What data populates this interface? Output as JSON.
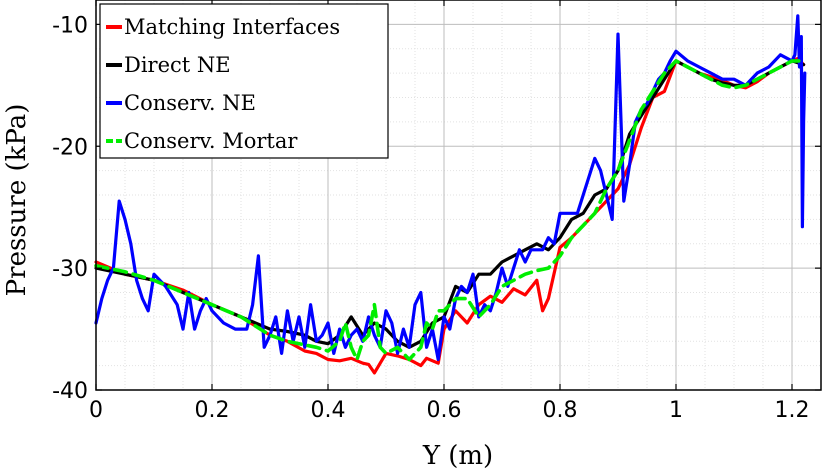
{
  "chart_data": {
    "type": "line",
    "xlabel": "Y (m)",
    "ylabel": "Pressure (kPa)",
    "xlim": [
      0,
      1.25
    ],
    "ylim": [
      -40,
      -8
    ],
    "xticks": [
      0,
      0.2,
      0.4,
      0.6,
      0.8,
      1,
      1.2
    ],
    "xtick_labels": [
      "0",
      "0.2",
      "0.4",
      "0.6",
      "0.8",
      "1",
      "1.2"
    ],
    "yticks": [
      -40,
      -30,
      -20,
      -10
    ],
    "ytick_labels": [
      "-40",
      "-30",
      "-20",
      "-10"
    ],
    "grid": "on",
    "minor_grid": "on",
    "legend_position": "top-left",
    "series": [
      {
        "name": "Matching Interfaces",
        "color": "#ff0000",
        "style": "solid",
        "x": [
          0,
          0.05,
          0.1,
          0.15,
          0.2,
          0.25,
          0.3,
          0.33,
          0.36,
          0.38,
          0.4,
          0.42,
          0.44,
          0.46,
          0.47,
          0.48,
          0.5,
          0.52,
          0.54,
          0.56,
          0.57,
          0.59,
          0.6,
          0.62,
          0.64,
          0.66,
          0.68,
          0.7,
          0.72,
          0.74,
          0.76,
          0.77,
          0.78,
          0.8,
          0.82,
          0.84,
          0.86,
          0.88,
          0.9,
          0.92,
          0.94,
          0.96,
          0.98,
          1,
          1.02,
          1.04,
          1.06,
          1.08,
          1.1,
          1.12,
          1.14,
          1.16,
          1.18,
          1.2,
          1.21,
          1.22
        ],
        "y": [
          -29.5,
          -30.5,
          -31,
          -31.8,
          -33,
          -34,
          -35.5,
          -36,
          -36.8,
          -37,
          -37.5,
          -37.6,
          -37.4,
          -37.8,
          -37.9,
          -38.6,
          -37,
          -37.2,
          -37.5,
          -38,
          -37.4,
          -37.8,
          -35,
          -33.5,
          -34.5,
          -33,
          -32.3,
          -32.8,
          -31.7,
          -32.2,
          -31,
          -33.5,
          -32.5,
          -28.3,
          -27.5,
          -26.5,
          -25.5,
          -24.5,
          -23.5,
          -21.5,
          -18.5,
          -16,
          -15.5,
          -13,
          -13.5,
          -14,
          -14.3,
          -14.6,
          -15,
          -15.2,
          -14.7,
          -14,
          -13.5,
          -13,
          -12.8,
          -13.3
        ]
      },
      {
        "name": "Direct NE",
        "color": "#000000",
        "style": "solid",
        "x": [
          0,
          0.05,
          0.1,
          0.15,
          0.2,
          0.25,
          0.3,
          0.33,
          0.36,
          0.38,
          0.4,
          0.42,
          0.44,
          0.46,
          0.48,
          0.5,
          0.52,
          0.54,
          0.56,
          0.58,
          0.6,
          0.62,
          0.64,
          0.66,
          0.68,
          0.7,
          0.72,
          0.74,
          0.76,
          0.78,
          0.8,
          0.82,
          0.84,
          0.86,
          0.88,
          0.9,
          0.92,
          0.94,
          0.96,
          0.98,
          1,
          1.02,
          1.04,
          1.06,
          1.08,
          1.1,
          1.12,
          1.14,
          1.16,
          1.18,
          1.2,
          1.22
        ],
        "y": [
          -30,
          -30.5,
          -31,
          -32,
          -33,
          -34,
          -35,
          -35.2,
          -35.5,
          -36,
          -36.2,
          -35.5,
          -34,
          -35.5,
          -34.5,
          -35,
          -36,
          -36.5,
          -36,
          -34.5,
          -34,
          -31.5,
          -32,
          -30.5,
          -30.5,
          -29.5,
          -29,
          -28.5,
          -28,
          -28.5,
          -27.5,
          -26,
          -25.5,
          -24,
          -23.5,
          -22,
          -19,
          -17.5,
          -16,
          -14.5,
          -13,
          -13.5,
          -14,
          -14.5,
          -14.8,
          -15,
          -15,
          -14.5,
          -14,
          -13.5,
          -13,
          -13.3
        ]
      },
      {
        "name": "Conserv. NE",
        "color": "#0000ff",
        "style": "solid",
        "x": [
          0,
          0.01,
          0.02,
          0.03,
          0.04,
          0.05,
          0.06,
          0.07,
          0.08,
          0.09,
          0.1,
          0.12,
          0.14,
          0.15,
          0.16,
          0.17,
          0.18,
          0.19,
          0.2,
          0.22,
          0.24,
          0.26,
          0.27,
          0.28,
          0.29,
          0.3,
          0.31,
          0.32,
          0.33,
          0.34,
          0.35,
          0.36,
          0.37,
          0.38,
          0.39,
          0.4,
          0.41,
          0.42,
          0.43,
          0.44,
          0.45,
          0.46,
          0.47,
          0.48,
          0.49,
          0.5,
          0.51,
          0.52,
          0.53,
          0.54,
          0.55,
          0.56,
          0.57,
          0.58,
          0.59,
          0.6,
          0.61,
          0.62,
          0.63,
          0.64,
          0.65,
          0.66,
          0.67,
          0.68,
          0.69,
          0.7,
          0.71,
          0.72,
          0.73,
          0.74,
          0.75,
          0.76,
          0.77,
          0.78,
          0.79,
          0.8,
          0.81,
          0.82,
          0.83,
          0.84,
          0.85,
          0.86,
          0.87,
          0.88,
          0.89,
          0.9,
          0.91,
          0.92,
          0.93,
          0.94,
          0.95,
          0.96,
          0.97,
          0.98,
          0.99,
          1,
          1.02,
          1.04,
          1.06,
          1.08,
          1.1,
          1.12,
          1.14,
          1.16,
          1.18,
          1.2,
          1.205,
          1.21,
          1.213,
          1.216,
          1.218,
          1.22,
          1.222
        ],
        "y": [
          -34.5,
          -32.5,
          -31,
          -30,
          -24.5,
          -26,
          -28,
          -31,
          -32.5,
          -33.5,
          -30.5,
          -31.5,
          -33,
          -35,
          -32,
          -35,
          -33.5,
          -32.5,
          -33.5,
          -34.5,
          -35,
          -35,
          -33,
          -29,
          -36.5,
          -35.5,
          -34,
          -37,
          -33.5,
          -36,
          -34,
          -36.5,
          -33,
          -36,
          -35.5,
          -34.5,
          -37,
          -35,
          -36.5,
          -35.5,
          -35,
          -36,
          -34,
          -35.5,
          -36.5,
          -33.5,
          -34.5,
          -37,
          -35,
          -36.5,
          -33,
          -32,
          -36.5,
          -35,
          -37.5,
          -34,
          -35,
          -32.5,
          -31.5,
          -32,
          -30.5,
          -34,
          -33,
          -33.5,
          -32,
          -30,
          -31.5,
          -30,
          -28.5,
          -29.5,
          -28.5,
          -28.5,
          -28.5,
          -27.5,
          -28,
          -25.5,
          -25.5,
          -25.5,
          -25.5,
          -24,
          -22.5,
          -21,
          -22,
          -24,
          -26,
          -10.8,
          -24.5,
          -21.5,
          -18,
          -17,
          -16.5,
          -15.5,
          -14.5,
          -14,
          -13,
          -12.2,
          -13,
          -13.5,
          -14,
          -14.5,
          -14.5,
          -15,
          -14,
          -13.5,
          -12.5,
          -13,
          -12.5,
          -9.3,
          -13.5,
          -11,
          -26.6,
          -18,
          -14
        ]
      },
      {
        "name": "Conserv. Mortar",
        "color": "#00ee00",
        "style": "dashed",
        "x": [
          0,
          0.05,
          0.1,
          0.15,
          0.2,
          0.25,
          0.3,
          0.33,
          0.36,
          0.38,
          0.4,
          0.42,
          0.43,
          0.44,
          0.45,
          0.46,
          0.47,
          0.48,
          0.49,
          0.5,
          0.52,
          0.54,
          0.56,
          0.57,
          0.58,
          0.59,
          0.6,
          0.62,
          0.64,
          0.66,
          0.68,
          0.7,
          0.72,
          0.74,
          0.76,
          0.78,
          0.8,
          0.82,
          0.84,
          0.86,
          0.88,
          0.9,
          0.92,
          0.94,
          0.96,
          0.98,
          1,
          1.02,
          1.04,
          1.06,
          1.08,
          1.1,
          1.12,
          1.14,
          1.16,
          1.18,
          1.2,
          1.22
        ],
        "y": [
          -29.8,
          -30.3,
          -31,
          -32,
          -33,
          -34,
          -35.5,
          -36,
          -36.3,
          -36.5,
          -36.8,
          -36,
          -34.5,
          -36.5,
          -37.5,
          -36,
          -35.5,
          -33,
          -36.5,
          -37,
          -36.5,
          -37.5,
          -36.5,
          -34.5,
          -35,
          -33.5,
          -33.5,
          -32.5,
          -32.5,
          -34,
          -33,
          -31.5,
          -31,
          -30.5,
          -30.2,
          -30,
          -29,
          -27.5,
          -26.5,
          -25.5,
          -23.5,
          -22,
          -19.5,
          -17,
          -15.5,
          -14,
          -13,
          -13.5,
          -14,
          -14.5,
          -15,
          -15.2,
          -15,
          -14.5,
          -14,
          -13.5,
          -13,
          -13
        ]
      }
    ]
  }
}
